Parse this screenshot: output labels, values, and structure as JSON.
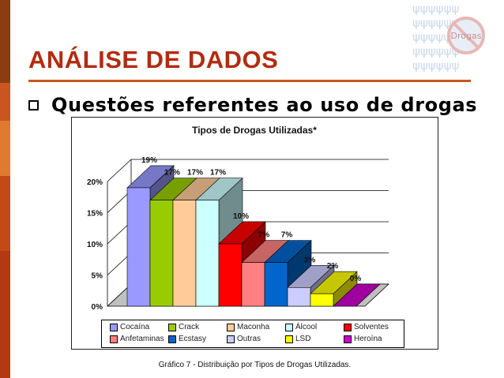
{
  "slide": {
    "title": "ANÁLISE DE DADOS",
    "bullet": "Questões referentes ao uso de drogas",
    "caption": "Gráfico 7 - Distribuição por Tipos de Drogas Utilizadas.",
    "watermark_label": "Drogas"
  },
  "chart_data": {
    "type": "bar",
    "title": "Tipos de Drogas Utilizadas*",
    "ylim": [
      0,
      20
    ],
    "yticks": [
      "0%",
      "5%",
      "10%",
      "15%",
      "20%"
    ],
    "grid": true,
    "legend_position": "bottom",
    "series": [
      {
        "name": "Cocaína",
        "value": 19,
        "label": "19%",
        "color": "#9999ff"
      },
      {
        "name": "Crack",
        "value": 17,
        "label": "17%",
        "color": "#99cc00"
      },
      {
        "name": "Maconha",
        "value": 17,
        "label": "17%",
        "color": "#ffcc99"
      },
      {
        "name": "Álcool",
        "value": 17,
        "label": "17%",
        "color": "#ccffff"
      },
      {
        "name": "Solventes",
        "value": 10,
        "label": "10%",
        "color": "#ff0000"
      },
      {
        "name": "Anfetaminas",
        "value": 7,
        "label": "7%",
        "color": "#ff8080"
      },
      {
        "name": "Ecstasy",
        "value": 7,
        "label": "7%",
        "color": "#0066cc"
      },
      {
        "name": "Outras",
        "value": 3,
        "label": "3%",
        "color": "#ccccff"
      },
      {
        "name": "LSD",
        "value": 2,
        "label": "2%",
        "color": "#ffff00"
      },
      {
        "name": "Heroína",
        "value": 0,
        "label": "0%",
        "color": "#cc00cc"
      }
    ]
  }
}
